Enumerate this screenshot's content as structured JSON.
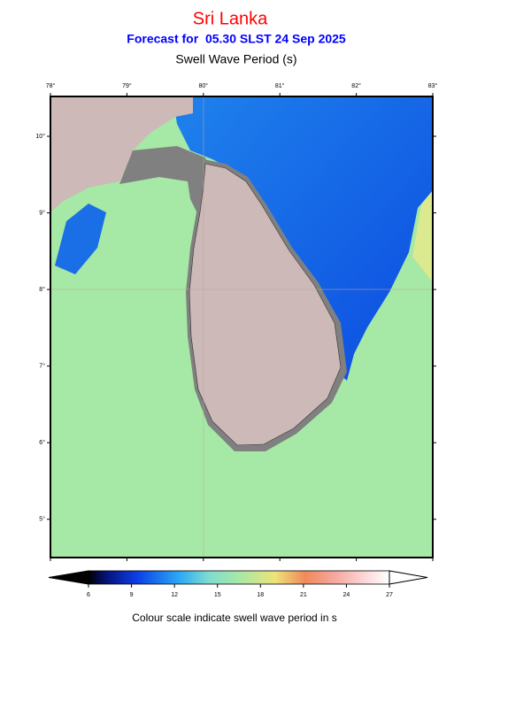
{
  "map": {
    "title": "Sri Lanka",
    "subtitle": "Forecast for  05.30 SLST 24 Sep 2025",
    "variable": "Swell Wave Period (s)",
    "lon_range": [
      78,
      83
    ],
    "lat_range": [
      4.5,
      10.52
    ],
    "lon_ticks": [
      {
        "value": 78,
        "label": "78°"
      },
      {
        "value": 79,
        "label": "79°"
      },
      {
        "value": 80,
        "label": "80°"
      },
      {
        "value": 81,
        "label": "81°"
      },
      {
        "value": 82,
        "label": "82°"
      },
      {
        "value": 83,
        "label": "83°"
      }
    ],
    "lat_ticks": [
      {
        "value": 10,
        "label": "10°"
      },
      {
        "value": 9,
        "label": "9°"
      },
      {
        "value": 8,
        "label": "8°"
      },
      {
        "value": 7,
        "label": "7°"
      },
      {
        "value": 6,
        "label": "6°"
      },
      {
        "value": 5,
        "label": "5°"
      }
    ],
    "colorbar": {
      "lim": [
        6,
        27
      ],
      "ticks": [
        6,
        9,
        12,
        15,
        18,
        21,
        24,
        27
      ],
      "caption": "Colour scale indicate swell wave period in s"
    }
  }
}
